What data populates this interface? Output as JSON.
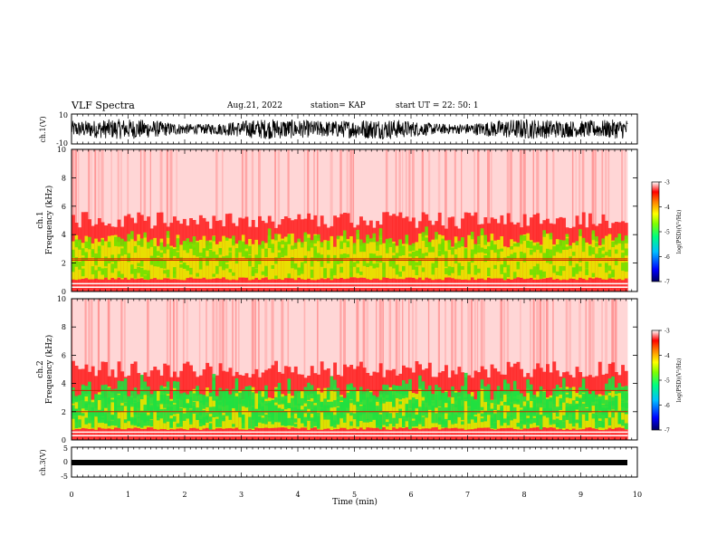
{
  "header": {
    "title": "VLF Spectra",
    "date": "Aug.21, 2022",
    "station": "station= KAP",
    "start_ut": "start  UT =   22: 50: 1"
  },
  "chart_data": [
    {
      "type": "line",
      "panel": "ch1-waveform",
      "ylabel": "ch.1(V)",
      "ylim": [
        -10,
        10
      ],
      "yticks": [
        "10",
        "-10"
      ],
      "xlim": [
        0,
        10
      ],
      "note": "dense black waveform filling roughly -8 to 8 V"
    },
    {
      "type": "heatmap",
      "panel": "ch1-spectrogram",
      "ylabel": "ch.1\nFrequency (kHz)",
      "ylabel_lines": [
        "ch.1",
        "Frequency (kHz)"
      ],
      "ylim": [
        0,
        10
      ],
      "yticks": [
        "0",
        "2",
        "4",
        "6",
        "8",
        "10"
      ],
      "xlim": [
        0,
        9.83
      ],
      "colorbar": {
        "label": "log(PSD)(V²/Hz)",
        "range": [
          -7,
          -3
        ],
        "ticks": [
          "-3",
          "-4",
          "-5",
          "-6",
          "-7"
        ]
      },
      "bands_khz": {
        "yellow_green_low": 0.8,
        "yellow_green_high": 3.6,
        "red_top": 5.0
      },
      "lines_khz": [
        0.3,
        0.55,
        2.2,
        2.3
      ]
    },
    {
      "type": "heatmap",
      "panel": "ch2-spectrogram",
      "ylabel": "ch.2\nFrequency (kHz)",
      "ylabel_lines": [
        "ch.2",
        "Frequency (kHz)"
      ],
      "ylim": [
        0,
        10
      ],
      "yticks": [
        "0",
        "2",
        "4",
        "6",
        "8",
        "10"
      ],
      "xlim": [
        0,
        9.83
      ],
      "colorbar": {
        "label": "log(PSD)(V²/Hz)",
        "range": [
          -7,
          -3
        ],
        "ticks": [
          "-3",
          "-4",
          "-5",
          "-6",
          "-7"
        ]
      },
      "bands_khz": {
        "yellow_green_low": 0.7,
        "yellow_green_high": 3.3,
        "red_top": 5.0
      },
      "lines_khz": [
        0.3,
        0.55,
        2.0,
        3.5
      ]
    },
    {
      "type": "line",
      "panel": "ch3-waveform",
      "ylabel": "ch.3(V)",
      "ylim": [
        -5,
        5
      ],
      "yticks": [
        "5",
        "0",
        "-5"
      ],
      "xlim": [
        0,
        10
      ],
      "xlabel": "Time (min)",
      "xticks": [
        "0",
        "1",
        "2",
        "3",
        "4",
        "5",
        "6",
        "7",
        "8",
        "9",
        "10"
      ],
      "note": "thin black band near -1 V"
    }
  ]
}
